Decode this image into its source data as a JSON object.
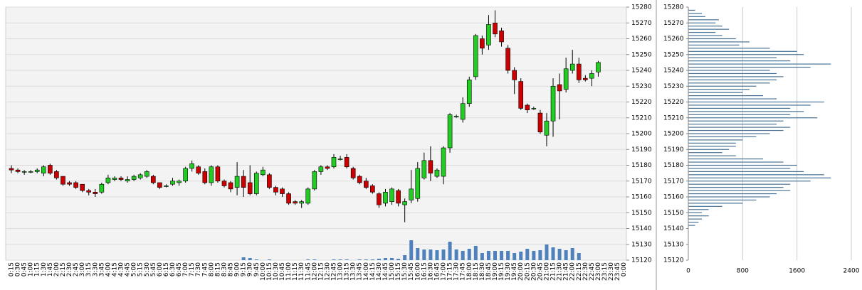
{
  "chart_data": [
    {
      "type": "candlestick",
      "x": [
        "0:15",
        "0:30",
        "0:45",
        "1:00",
        "1:15",
        "1:30",
        "1:45",
        "2:00",
        "2:15",
        "2:30",
        "2:45",
        "3:00",
        "3:15",
        "3:30",
        "3:45",
        "4:00",
        "4:15",
        "4:30",
        "4:45",
        "5:00",
        "5:15",
        "5:30",
        "5:45",
        "6:00",
        "6:15",
        "6:30",
        "6:45",
        "7:00",
        "7:15",
        "7:30",
        "7:45",
        "8:00",
        "8:15",
        "8:30",
        "8:45",
        "9:00",
        "9:15",
        "9:30",
        "9:45",
        "10:00",
        "10:15",
        "10:30",
        "10:45",
        "11:00",
        "11:15",
        "11:30",
        "11:45",
        "12:00",
        "12:15",
        "12:30",
        "12:45",
        "13:00",
        "13:15",
        "13:30",
        "13:45",
        "14:00",
        "14:15",
        "14:30",
        "14:45",
        "15:00",
        "15:15",
        "15:30",
        "15:45",
        "16:00",
        "16:15",
        "16:30",
        "16:45",
        "17:00",
        "17:15",
        "17:30",
        "17:45",
        "18:00",
        "18:15",
        "18:30",
        "18:45",
        "19:00",
        "19:15",
        "19:30",
        "19:45",
        "20:00",
        "20:15",
        "20:30",
        "20:45",
        "21:00",
        "21:15",
        "21:30",
        "21:45",
        "22:00",
        "22:15",
        "22:30",
        "22:45",
        "23:00",
        "23:15",
        "23:30",
        "23:45",
        "0:00"
      ],
      "open": [
        15178,
        15177,
        15176,
        15176,
        15176,
        15175,
        15180,
        15176,
        15173,
        15169,
        15169,
        15168,
        15164,
        15163,
        15163,
        15169,
        15171,
        15172,
        15170,
        15171,
        15172,
        15173,
        15173,
        15169,
        15167,
        15168,
        15169,
        15170,
        15178,
        15179,
        15176,
        15169,
        15179,
        15170,
        15169,
        15166,
        15173,
        15169,
        15162,
        15174,
        15174,
        15166,
        15165,
        15162,
        15157,
        15156,
        15156,
        15165,
        15176,
        15179,
        15179,
        15184,
        15185,
        15178,
        15173,
        15170,
        15167,
        15162,
        15156,
        15157,
        15164,
        15155,
        15158,
        15159,
        15172,
        15183,
        15173,
        15173,
        15191,
        15211,
        15209,
        15219,
        15236,
        15260,
        15256,
        15270,
        15265,
        15254,
        15240,
        15233,
        15218,
        15216,
        15213,
        15199,
        15208,
        15231,
        15228,
        15240,
        15244,
        15235,
        15235,
        15239,
        null,
        null,
        null,
        null
      ],
      "high": [
        15180,
        15178,
        15177,
        15177,
        15178,
        15180,
        15181,
        15177,
        15173,
        15170,
        15170,
        15168,
        15165,
        15165,
        15169,
        15174,
        15173,
        15173,
        15173,
        15174,
        15175,
        15177,
        15174,
        15169,
        15168,
        15172,
        15171,
        15179,
        15183,
        15180,
        15178,
        15180,
        15180,
        15171,
        15170,
        15182,
        15177,
        15180,
        15176,
        15179,
        15175,
        15167,
        15166,
        15163,
        15158,
        15158,
        15166,
        15177,
        15180,
        15180,
        15187,
        15186,
        15187,
        15179,
        15174,
        15172,
        15168,
        15163,
        15165,
        15166,
        15165,
        15159,
        15177,
        15182,
        15188,
        15192,
        15178,
        15192,
        15213,
        15212,
        15223,
        15236,
        15263,
        15262,
        15275,
        15278,
        15267,
        15256,
        15242,
        15235,
        15219,
        15217,
        15215,
        15213,
        15235,
        15238,
        15248,
        15253,
        15248,
        15237,
        15240,
        15246,
        null,
        null,
        null,
        null
      ],
      "low": [
        15175,
        15175,
        15174,
        15175,
        15175,
        15173,
        15174,
        15171,
        15167,
        15167,
        15165,
        15163,
        15161,
        15160,
        15162,
        15168,
        15170,
        15170,
        15169,
        15170,
        15171,
        15172,
        15168,
        15165,
        15166,
        15167,
        15167,
        15169,
        15176,
        15174,
        15168,
        15167,
        15169,
        15166,
        15163,
        15161,
        15160,
        15161,
        15161,
        15173,
        15165,
        15161,
        15160,
        15155,
        15155,
        15153,
        15155,
        15164,
        15174,
        15177,
        15178,
        15183,
        15178,
        15171,
        15168,
        15165,
        15162,
        15153,
        15154,
        15155,
        15154,
        15144,
        15156,
        15157,
        15171,
        15170,
        15172,
        15168,
        15188,
        15210,
        15207,
        15217,
        15234,
        15250,
        15253,
        15261,
        15255,
        15238,
        15225,
        15215,
        15213,
        15215,
        15200,
        15192,
        15198,
        15209,
        15226,
        15238,
        15232,
        15233,
        15230,
        15236,
        null,
        null,
        null,
        null
      ],
      "close": [
        15177,
        15176,
        15176,
        15176,
        15177,
        15179,
        15175,
        15172,
        15168,
        15168,
        15166,
        15164,
        15163,
        15162,
        15168,
        15172,
        15172,
        15171,
        15171,
        15173,
        15174,
        15176,
        15169,
        15166,
        15167,
        15170,
        15170,
        15178,
        15181,
        15175,
        15169,
        15179,
        15170,
        15167,
        15165,
        15173,
        15166,
        15162,
        15175,
        15177,
        15166,
        15163,
        15162,
        15156,
        15156,
        15157,
        15165,
        15176,
        15179,
        15178,
        15185,
        15184,
        15179,
        15172,
        15169,
        15166,
        15163,
        15155,
        15163,
        15165,
        15156,
        15157,
        15165,
        15178,
        15183,
        15175,
        15177,
        15191,
        15212,
        15211,
        15219,
        15234,
        15262,
        15254,
        15269,
        15263,
        15258,
        15240,
        15234,
        15216,
        15215,
        15216,
        15201,
        15208,
        15230,
        15227,
        15241,
        15244,
        15234,
        15234,
        15238,
        15245,
        null,
        null,
        null,
        null
      ],
      "volume": [
        0,
        0,
        0,
        0,
        0,
        0,
        0,
        0,
        0,
        0,
        0,
        0,
        0,
        0,
        0,
        0,
        0,
        0,
        0,
        0,
        0,
        0,
        0,
        0,
        0,
        0,
        0,
        0,
        0,
        0,
        0,
        0,
        0,
        0,
        0,
        0,
        4,
        3,
        1,
        0,
        1,
        0,
        0,
        0,
        0,
        0,
        1,
        1,
        0,
        0,
        1,
        1,
        1,
        0,
        1,
        1,
        1,
        2,
        3,
        3,
        2,
        7,
        28,
        17,
        15,
        15,
        14,
        15,
        26,
        15,
        13,
        16,
        20,
        10,
        13,
        13,
        13,
        13,
        10,
        12,
        16,
        13,
        14,
        22,
        18,
        16,
        14,
        17,
        10,
        0,
        0,
        0,
        null,
        null,
        null,
        null
      ],
      "up_color": "#22cc22",
      "down_color": "#cc0000",
      "volume_color": "#4f81bd",
      "ylim": [
        15120,
        15280
      ],
      "yticks": [
        15120,
        15130,
        15140,
        15150,
        15160,
        15170,
        15180,
        15190,
        15200,
        15210,
        15220,
        15230,
        15240,
        15250,
        15260,
        15270,
        15280
      ],
      "grid": true
    },
    {
      "type": "hbar",
      "y": [
        15278,
        15276,
        15274,
        15272,
        15270,
        15268,
        15266,
        15264,
        15262,
        15260,
        15258,
        15256,
        15254,
        15252,
        15250,
        15248,
        15246,
        15244,
        15242,
        15240,
        15238,
        15236,
        15234,
        15232,
        15230,
        15228,
        15226,
        15224,
        15222,
        15220,
        15218,
        15216,
        15214,
        15212,
        15210,
        15208,
        15206,
        15204,
        15202,
        15200,
        15198,
        15196,
        15194,
        15192,
        15190,
        15188,
        15186,
        15184,
        15182,
        15180,
        15178,
        15176,
        15174,
        15172,
        15170,
        15168,
        15166,
        15164,
        15162,
        15160,
        15158,
        15156,
        15154,
        15152,
        15150,
        15148,
        15146,
        15144,
        15142
      ],
      "values": [
        100,
        200,
        250,
        450,
        400,
        500,
        600,
        400,
        500,
        700,
        900,
        750,
        1200,
        1600,
        1700,
        1300,
        1500,
        2100,
        1800,
        1200,
        1300,
        1400,
        1300,
        1200,
        1000,
        900,
        800,
        1100,
        1300,
        2000,
        1800,
        1500,
        1700,
        1500,
        1900,
        1400,
        1300,
        1500,
        1400,
        1200,
        1000,
        800,
        700,
        700,
        600,
        500,
        700,
        1100,
        1400,
        1600,
        1500,
        1700,
        2000,
        2100,
        1800,
        1500,
        1400,
        1500,
        1300,
        1200,
        1000,
        800,
        500,
        300,
        200,
        300,
        200,
        150,
        100
      ],
      "color": "#4a7396",
      "ylim": [
        15120,
        15280
      ],
      "yticks": [
        15120,
        15130,
        15140,
        15150,
        15160,
        15170,
        15180,
        15190,
        15200,
        15210,
        15220,
        15230,
        15240,
        15250,
        15260,
        15270,
        15280
      ],
      "xlim": [
        0,
        2400
      ],
      "xticks": [
        0,
        800,
        1600,
        2400
      ],
      "grid": true
    }
  ]
}
